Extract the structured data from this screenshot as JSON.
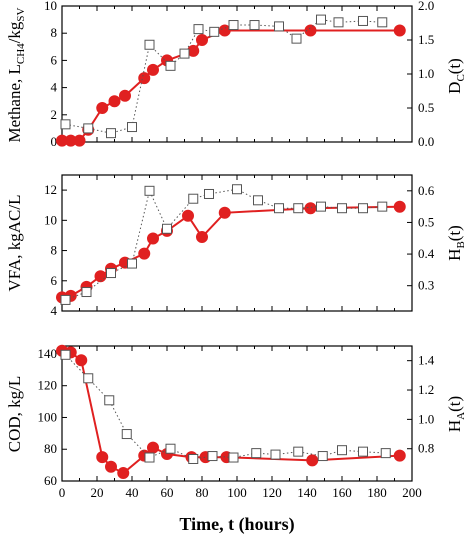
{
  "chart_data": [
    {
      "type": "line",
      "ylabel_left_main": "Methane, L",
      "ylabel_left_sub": "CH4",
      "ylabel_left_mid": "/kg",
      "ylabel_left_sub2": "SV",
      "ylabel_right_main": "D",
      "ylabel_right_sub": "C",
      "ylabel_right_tail": "(t)",
      "xlim": [
        0,
        200
      ],
      "ylim_left": [
        0,
        10
      ],
      "ylim_right": [
        0,
        2.0
      ],
      "left_ticks": [
        "0",
        "2",
        "4",
        "6",
        "8",
        "10"
      ],
      "right_ticks": [
        "0.0",
        "0.5",
        "1.0",
        "1.5",
        "2.0"
      ],
      "series": [
        {
          "axis": "left",
          "style": "filled-circle-solid",
          "color": "#e02020",
          "x": [
            0,
            5,
            10,
            15,
            23,
            30,
            36,
            47,
            52,
            60,
            75,
            80,
            93,
            142,
            193
          ],
          "y": [
            0.1,
            0.1,
            0.1,
            0.9,
            2.5,
            3.0,
            3.4,
            4.7,
            5.3,
            6.0,
            6.7,
            7.5,
            8.2,
            8.2,
            8.2
          ]
        },
        {
          "axis": "right",
          "style": "open-square-dotted",
          "color": "#555555",
          "x": [
            2,
            15,
            28,
            40,
            50,
            62,
            70,
            78,
            87,
            98,
            110,
            124,
            134,
            148,
            158,
            172,
            183
          ],
          "y": [
            0.26,
            0.2,
            0.13,
            0.22,
            1.43,
            1.12,
            1.3,
            1.66,
            1.62,
            1.72,
            1.72,
            1.7,
            1.52,
            1.8,
            1.76,
            1.78,
            1.76
          ]
        }
      ]
    },
    {
      "type": "line",
      "ylabel_left_main": "VFA, kgAC/L",
      "ylabel_right_main": "H",
      "ylabel_right_sub": "B",
      "ylabel_right_tail": "(t)",
      "xlim": [
        0,
        200
      ],
      "ylim_left": [
        4,
        13
      ],
      "ylim_right": [
        0.22,
        0.65
      ],
      "left_ticks": [
        "4",
        "6",
        "8",
        "10",
        "12"
      ],
      "right_ticks": [
        "0.3",
        "0.4",
        "0.5",
        "0.6"
      ],
      "series": [
        {
          "axis": "left",
          "style": "filled-circle-solid",
          "color": "#e02020",
          "x": [
            0,
            5,
            14,
            22,
            28,
            36,
            47,
            52,
            60,
            72,
            80,
            93,
            142,
            193
          ],
          "y": [
            4.9,
            5.0,
            5.6,
            6.3,
            6.8,
            7.2,
            7.8,
            8.8,
            9.3,
            10.3,
            8.9,
            10.5,
            10.8,
            10.9
          ]
        },
        {
          "axis": "right",
          "style": "open-square-dotted",
          "color": "#555555",
          "x": [
            2,
            14,
            28,
            40,
            50,
            60,
            75,
            84,
            100,
            112,
            124,
            135,
            148,
            160,
            172,
            183
          ],
          "y": [
            0.255,
            0.28,
            0.34,
            0.37,
            0.6,
            0.48,
            0.575,
            0.59,
            0.605,
            0.57,
            0.545,
            0.545,
            0.55,
            0.545,
            0.545,
            0.55
          ]
        }
      ]
    },
    {
      "type": "line",
      "ylabel_left_main": "COD, kg/L",
      "ylabel_right_main": "H",
      "ylabel_right_sub": "A",
      "ylabel_right_tail": "(t)",
      "xlim": [
        0,
        200
      ],
      "ylim_left": [
        60,
        145
      ],
      "ylim_right": [
        0.58,
        1.5
      ],
      "left_ticks": [
        "60",
        "80",
        "100",
        "120",
        "140"
      ],
      "right_ticks": [
        "0.8",
        "1.0",
        "1.2",
        "1.4"
      ],
      "xticks": [
        "0",
        "20",
        "40",
        "60",
        "80",
        "100",
        "120",
        "140",
        "160",
        "180",
        "200"
      ],
      "xlabel": "Time, t (hours)",
      "series": [
        {
          "axis": "left",
          "style": "filled-circle-solid",
          "color": "#e02020",
          "x": [
            0,
            5,
            11,
            23,
            28,
            35,
            47,
            52,
            60,
            74,
            82,
            94,
            143,
            193
          ],
          "y": [
            142,
            141,
            136,
            75,
            69,
            65,
            76,
            81,
            77,
            75,
            75,
            75,
            73,
            76
          ]
        },
        {
          "axis": "right",
          "style": "open-square-dotted",
          "color": "#555555",
          "x": [
            2,
            15,
            27,
            37,
            50,
            62,
            75,
            86,
            98,
            111,
            122,
            135,
            149,
            160,
            172,
            185
          ],
          "y": [
            1.44,
            1.28,
            1.13,
            0.9,
            0.74,
            0.8,
            0.73,
            0.75,
            0.74,
            0.77,
            0.76,
            0.78,
            0.75,
            0.79,
            0.78,
            0.77
          ]
        }
      ]
    }
  ]
}
